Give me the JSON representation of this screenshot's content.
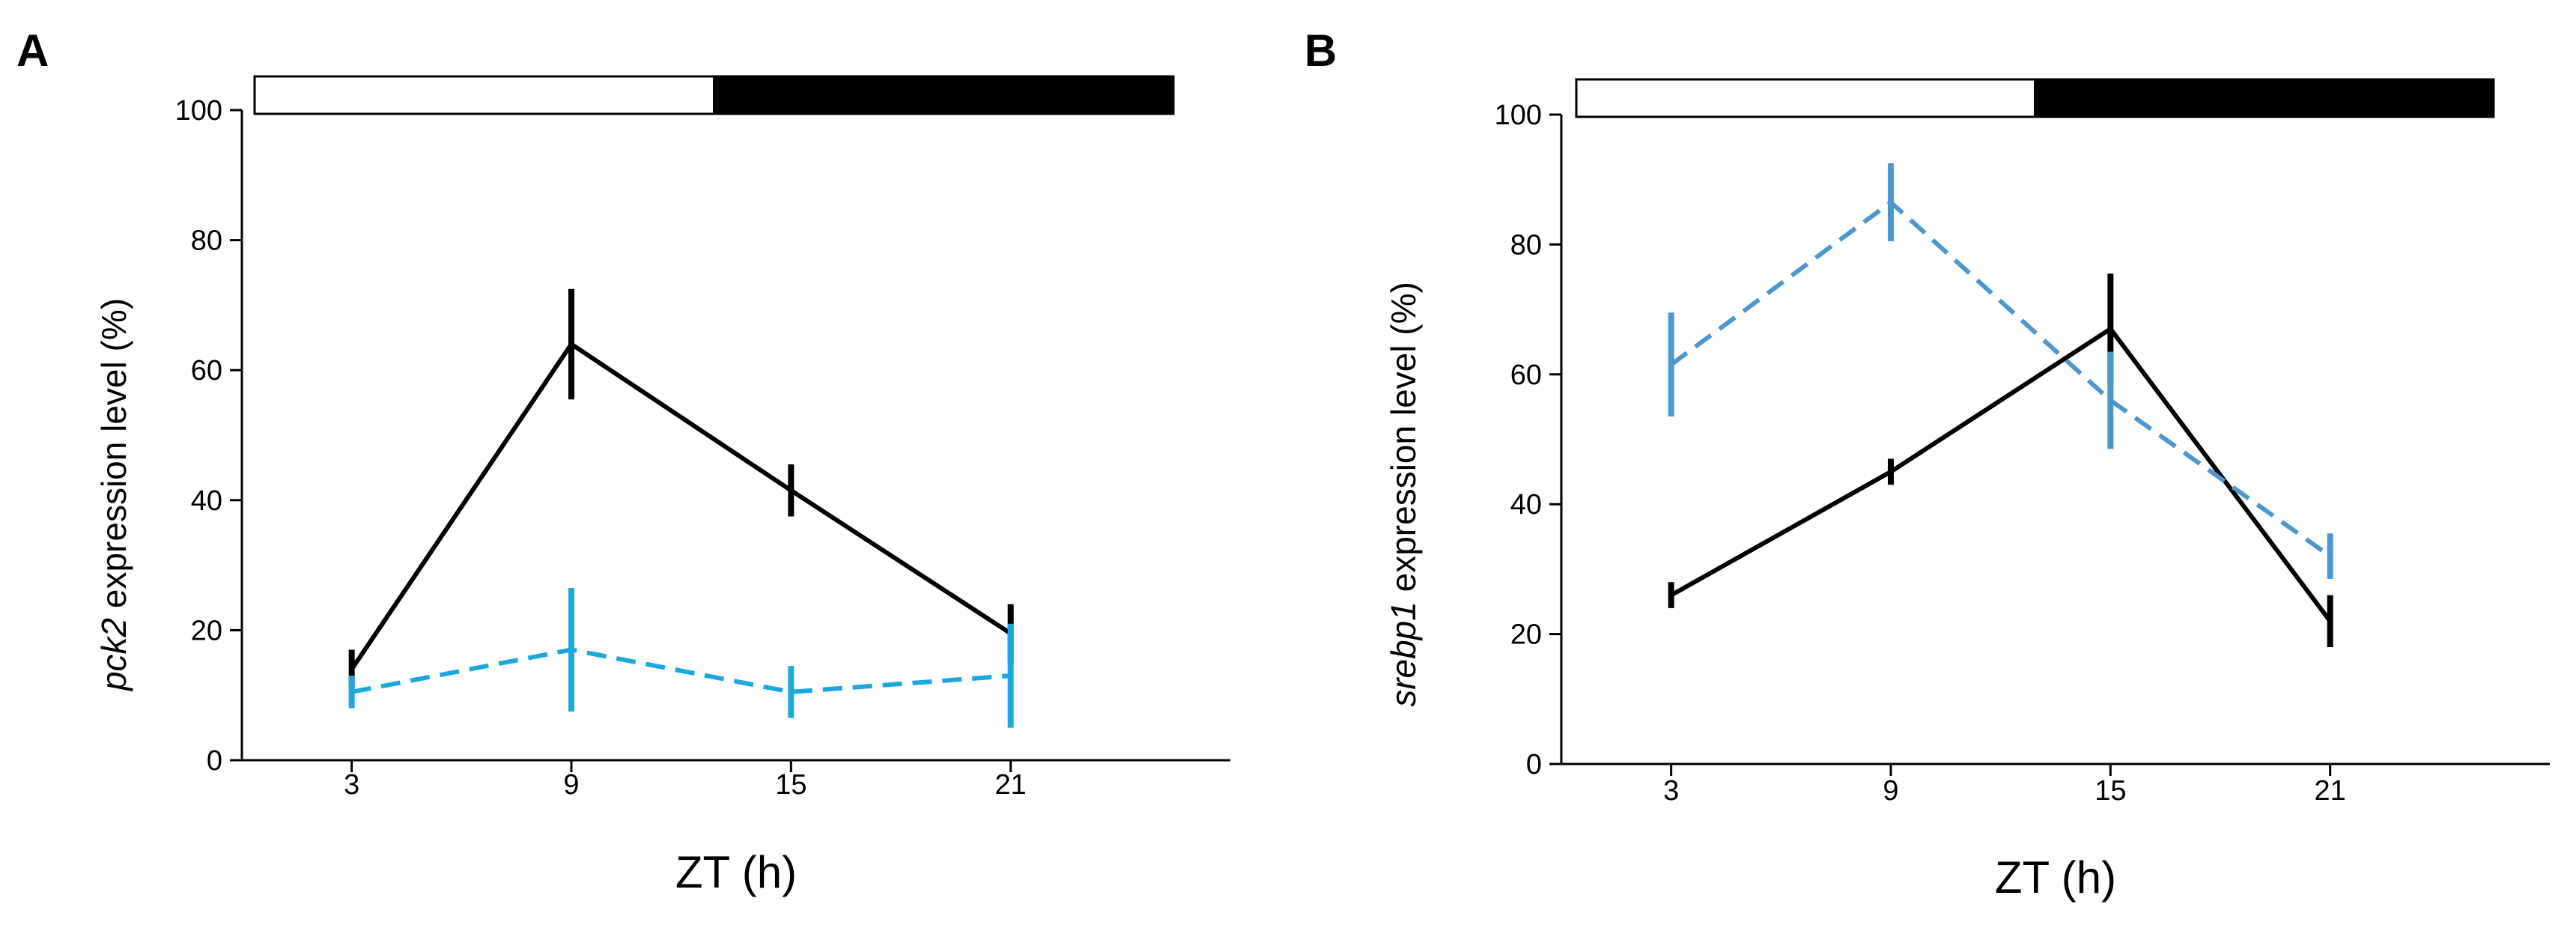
{
  "chart_data": [
    {
      "type": "line",
      "panel_label": "A",
      "title": "",
      "xlabel": "ZT (h)",
      "ylabel_gene": "pck2",
      "ylabel_rest": " expression level (%)",
      "xlim": [
        0,
        27
      ],
      "ylim": [
        0,
        100
      ],
      "x": [
        3,
        9,
        15,
        21
      ],
      "x_tick_labels": [
        "3",
        "9",
        "15",
        "21"
      ],
      "y_ticks": [
        0,
        20,
        40,
        60,
        80,
        100
      ],
      "y_tick_labels": [
        "0",
        "20",
        "40",
        "60",
        "80",
        "100"
      ],
      "light_dark_bar": {
        "light": [
          0,
          12
        ],
        "dark": [
          12,
          24
        ]
      },
      "grid": false,
      "legend": "none",
      "series": [
        {
          "values": [
            14,
            64,
            41.5,
            19.5
          ],
          "errors": [
            3,
            8.5,
            4,
            4.5
          ],
          "color": "#000000",
          "style": "solid"
        },
        {
          "values": [
            10.5,
            17,
            10.5,
            13
          ],
          "errors": [
            2.5,
            9.5,
            4,
            8
          ],
          "color": "#1BA8DF",
          "style": "dashed"
        }
      ]
    },
    {
      "type": "line",
      "panel_label": "B",
      "title": "",
      "xlabel": "ZT (h)",
      "ylabel_gene": "srebp1",
      "ylabel_rest": " expression level (%)",
      "xlim": [
        0,
        27
      ],
      "ylim": [
        0,
        100
      ],
      "x": [
        3,
        9,
        15,
        21
      ],
      "x_tick_labels": [
        "3",
        "9",
        "15",
        "21"
      ],
      "y_ticks": [
        0,
        20,
        40,
        60,
        80,
        100
      ],
      "y_tick_labels": [
        "0",
        "20",
        "40",
        "60",
        "80",
        "100"
      ],
      "light_dark_bar": {
        "light": [
          0,
          12
        ],
        "dark": [
          12,
          24
        ]
      },
      "grid": false,
      "legend": "none",
      "series": [
        {
          "values": [
            26,
            45,
            67,
            22
          ],
          "errors": [
            2,
            2,
            8.5,
            4
          ],
          "color": "#000000",
          "style": "solid"
        },
        {
          "values": [
            61.5,
            86.5,
            56,
            32
          ],
          "errors": [
            8,
            6,
            7.5,
            3.5
          ],
          "color": "#4A97D1",
          "style": "dashed"
        }
      ]
    }
  ]
}
